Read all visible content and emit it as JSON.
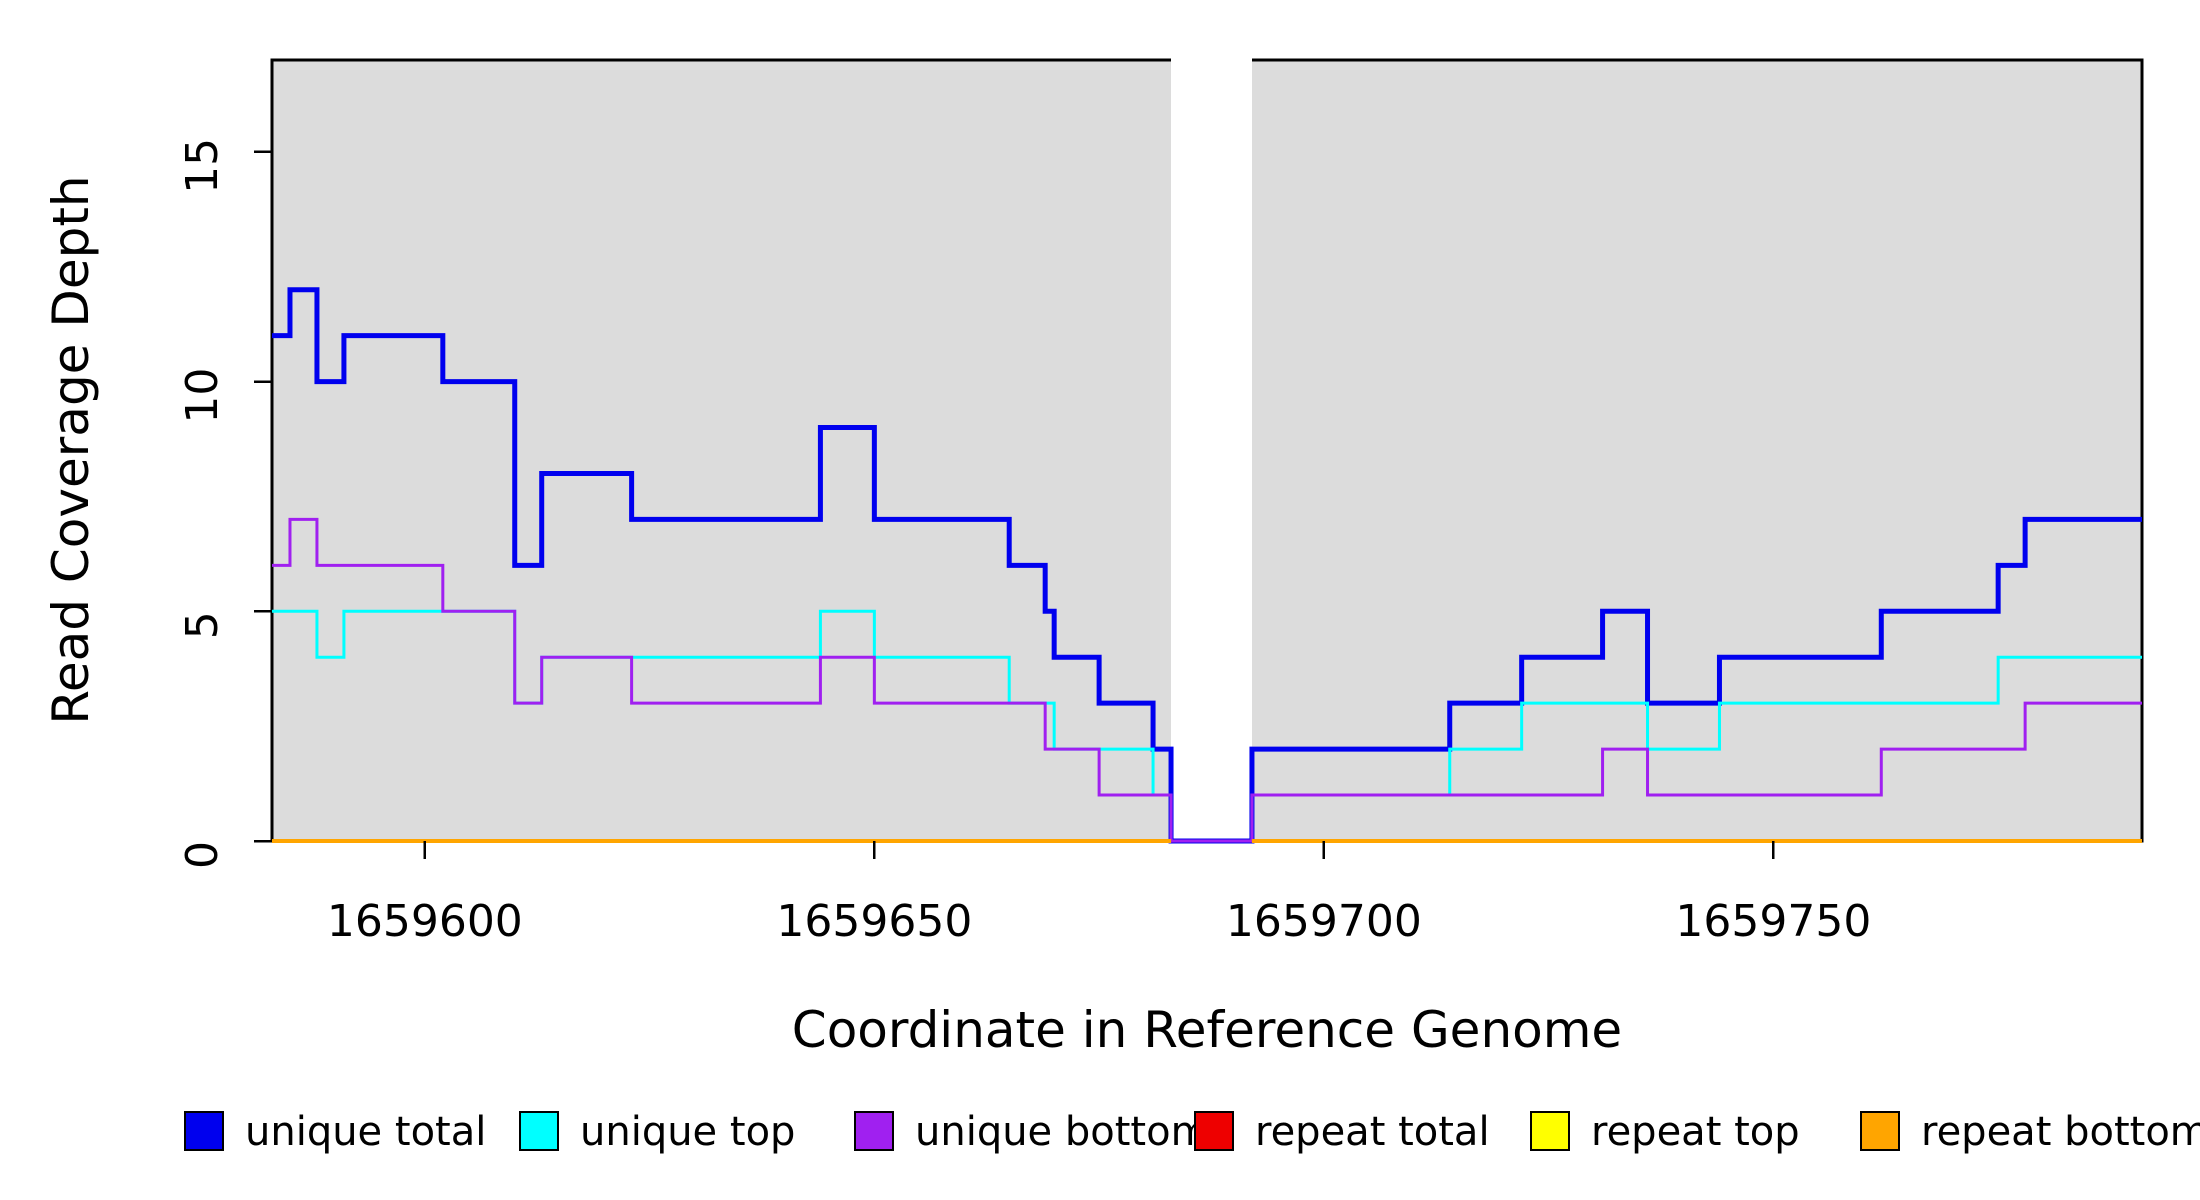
{
  "chart_data": {
    "type": "line",
    "subtype": "step-post",
    "title": "",
    "xlabel": "Coordinate in Reference Genome",
    "ylabel": "Read Coverage Depth",
    "xlim": [
      1659583,
      1659791
    ],
    "ylim": [
      0,
      17
    ],
    "x_ticks": [
      1659600,
      1659650,
      1659700,
      1659750
    ],
    "y_ticks": [
      0,
      5,
      10,
      15
    ],
    "grid": false,
    "panel_bg_color": "#DCDCDC",
    "panel_border_color": "#000000",
    "no_data_region": {
      "x_start": 1659683,
      "x_end": 1659692,
      "color": "#FFFFFF"
    },
    "legend_position": "bottom",
    "series": [
      {
        "name": "unique total",
        "color": "#0000EE",
        "line_width": 5,
        "steps": [
          [
            1659583,
            11
          ],
          [
            1659585,
            12
          ],
          [
            1659588,
            10
          ],
          [
            1659591,
            11
          ],
          [
            1659602,
            10
          ],
          [
            1659610,
            6
          ],
          [
            1659613,
            8
          ],
          [
            1659623,
            7
          ],
          [
            1659644,
            9
          ],
          [
            1659650,
            7
          ],
          [
            1659665,
            6
          ],
          [
            1659669,
            5
          ],
          [
            1659670,
            4
          ],
          [
            1659675,
            3
          ],
          [
            1659681,
            2
          ],
          [
            1659683,
            0
          ],
          [
            1659692,
            2
          ],
          [
            1659714,
            3
          ],
          [
            1659722,
            4
          ],
          [
            1659731,
            5
          ],
          [
            1659736,
            3
          ],
          [
            1659744,
            4
          ],
          [
            1659762,
            5
          ],
          [
            1659775,
            6
          ],
          [
            1659778,
            7
          ]
        ],
        "x_end": 1659791
      },
      {
        "name": "unique top",
        "color": "#00FFFF",
        "line_width": 3,
        "steps": [
          [
            1659583,
            5
          ],
          [
            1659588,
            4
          ],
          [
            1659591,
            5
          ],
          [
            1659610,
            3
          ],
          [
            1659613,
            4
          ],
          [
            1659644,
            5
          ],
          [
            1659650,
            4
          ],
          [
            1659665,
            3
          ],
          [
            1659670,
            2
          ],
          [
            1659681,
            1
          ],
          [
            1659683,
            0
          ],
          [
            1659692,
            1
          ],
          [
            1659714,
            2
          ],
          [
            1659722,
            3
          ],
          [
            1659736,
            2
          ],
          [
            1659744,
            3
          ],
          [
            1659775,
            4
          ]
        ],
        "x_end": 1659791
      },
      {
        "name": "unique bottom",
        "color": "#A020F0",
        "line_width": 3,
        "steps": [
          [
            1659583,
            6
          ],
          [
            1659585,
            7
          ],
          [
            1659588,
            6
          ],
          [
            1659602,
            5
          ],
          [
            1659610,
            3
          ],
          [
            1659613,
            4
          ],
          [
            1659623,
            3
          ],
          [
            1659644,
            4
          ],
          [
            1659650,
            3
          ],
          [
            1659669,
            2
          ],
          [
            1659675,
            1
          ],
          [
            1659683,
            0
          ],
          [
            1659692,
            1
          ],
          [
            1659731,
            2
          ],
          [
            1659736,
            1
          ],
          [
            1659762,
            2
          ],
          [
            1659778,
            3
          ]
        ],
        "x_end": 1659791
      },
      {
        "name": "repeat total",
        "color": "#EE0000",
        "line_width": 3,
        "segments": [
          {
            "x0": 1659583,
            "x1": 1659683,
            "value": 0
          },
          {
            "x0": 1659692,
            "x1": 1659791,
            "value": 0
          }
        ]
      },
      {
        "name": "repeat top",
        "color": "#FFFF00",
        "line_width": 3,
        "segments": [
          {
            "x0": 1659583,
            "x1": 1659683,
            "value": 0
          },
          {
            "x0": 1659692,
            "x1": 1659791,
            "value": 0
          }
        ]
      },
      {
        "name": "repeat bottom",
        "color": "#FFA500",
        "line_width": 4,
        "segments": [
          {
            "x0": 1659583,
            "x1": 1659683,
            "value": 0
          },
          {
            "x0": 1659692,
            "x1": 1659791,
            "value": 0
          }
        ]
      }
    ],
    "legend": [
      {
        "label": "unique total",
        "color": "#0000EE"
      },
      {
        "label": "unique top",
        "color": "#00FFFF"
      },
      {
        "label": "unique bottom",
        "color": "#A020F0"
      },
      {
        "label": "repeat total",
        "color": "#EE0000"
      },
      {
        "label": "repeat top",
        "color": "#FFFF00"
      },
      {
        "label": "repeat bottom",
        "color": "#FFA500"
      }
    ]
  },
  "axis_titles": {
    "x": "Coordinate in Reference Genome",
    "y": "Read Coverage Depth"
  }
}
